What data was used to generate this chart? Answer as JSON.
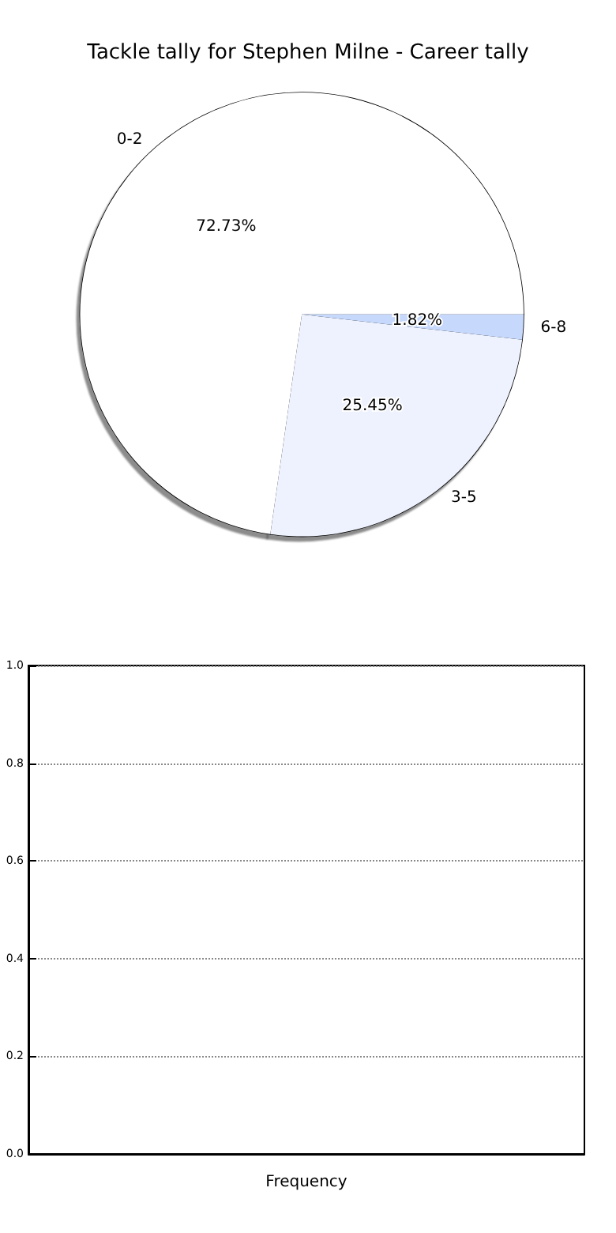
{
  "chart_data": [
    {
      "type": "pie",
      "title": "Tackle tally for Stephen Milne - Career tally",
      "categories": [
        "0-2",
        "3-5",
        "6-8"
      ],
      "values": [
        72.73,
        25.45,
        1.82
      ],
      "colors": [
        "#ffffff",
        "#eef2fe",
        "#c6d9fd"
      ],
      "value_labels": [
        "72.73%",
        "25.45%",
        "1.82%"
      ]
    },
    {
      "type": "bar",
      "xlabel": "Frequency",
      "categories": [
        null
      ],
      "values": [
        null
      ],
      "ylim": [
        0,
        1
      ],
      "yticks": [
        {
          "value": 0,
          "label": "0.0"
        },
        {
          "value": 0.2,
          "label": "0.2"
        },
        {
          "value": 0.4,
          "label": "0.4"
        },
        {
          "value": 0.6,
          "label": "0.6"
        },
        {
          "value": 0.8,
          "label": "0.8"
        },
        {
          "value": 1,
          "label": "1.0"
        }
      ],
      "grid": "y"
    }
  ]
}
